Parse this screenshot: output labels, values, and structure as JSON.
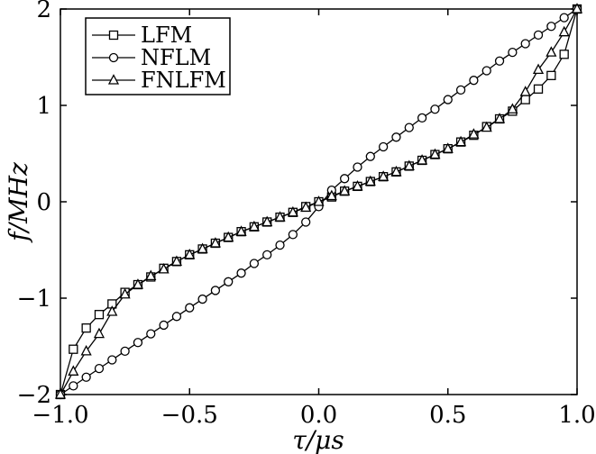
{
  "chart_data": {
    "type": "line",
    "xlabel": "τ/μs",
    "ylabel": "f/MHz",
    "xlim": [
      -1.0,
      1.0
    ],
    "ylim": [
      -2,
      2
    ],
    "xticks": [
      -1.0,
      -0.5,
      0.0,
      0.5,
      1.0
    ],
    "xtick_labels": [
      "−1.0",
      "−0.5",
      "0.0",
      "0.5",
      "1.0"
    ],
    "yticks": [
      -2,
      -1,
      0,
      1,
      2
    ],
    "ytick_labels": [
      "−2",
      "−1",
      "0",
      "1",
      "2"
    ],
    "grid": false,
    "legend_position": "top-left",
    "series": [
      {
        "name": "LFM",
        "marker": "square",
        "x": [
          -1.0,
          -0.95,
          -0.9,
          -0.85,
          -0.8,
          -0.75,
          -0.7,
          -0.65,
          -0.6,
          -0.55,
          -0.5,
          -0.45,
          -0.4,
          -0.35,
          -0.3,
          -0.25,
          -0.2,
          -0.15,
          -0.1,
          -0.05,
          0.0,
          0.05,
          0.1,
          0.15,
          0.2,
          0.25,
          0.3,
          0.35,
          0.4,
          0.45,
          0.5,
          0.55,
          0.6,
          0.65,
          0.7,
          0.75,
          0.8,
          0.85,
          0.9,
          0.95,
          1.0
        ],
        "y": [
          -2.0,
          -1.53,
          -1.31,
          -1.17,
          -1.06,
          -0.94,
          -0.86,
          -0.78,
          -0.69,
          -0.62,
          -0.55,
          -0.49,
          -0.43,
          -0.37,
          -0.31,
          -0.26,
          -0.21,
          -0.16,
          -0.11,
          -0.05,
          0.0,
          0.05,
          0.11,
          0.16,
          0.21,
          0.26,
          0.31,
          0.37,
          0.43,
          0.49,
          0.55,
          0.62,
          0.69,
          0.78,
          0.86,
          0.94,
          1.06,
          1.17,
          1.31,
          1.53,
          2.0
        ]
      },
      {
        "name": "NFLM",
        "marker": "circle",
        "x": [
          -1.0,
          -0.95,
          -0.9,
          -0.85,
          -0.8,
          -0.75,
          -0.7,
          -0.65,
          -0.6,
          -0.55,
          -0.5,
          -0.45,
          -0.4,
          -0.35,
          -0.3,
          -0.25,
          -0.2,
          -0.15,
          -0.1,
          -0.05,
          0.0,
          0.05,
          0.1,
          0.15,
          0.2,
          0.25,
          0.3,
          0.35,
          0.4,
          0.45,
          0.5,
          0.55,
          0.6,
          0.65,
          0.7,
          0.75,
          0.8,
          0.85,
          0.9,
          0.95,
          1.0
        ],
        "y": [
          -2.0,
          -1.91,
          -1.82,
          -1.73,
          -1.64,
          -1.55,
          -1.46,
          -1.37,
          -1.28,
          -1.19,
          -1.1,
          -1.01,
          -0.92,
          -0.83,
          -0.74,
          -0.64,
          -0.55,
          -0.45,
          -0.34,
          -0.21,
          -0.05,
          0.12,
          0.24,
          0.36,
          0.47,
          0.57,
          0.67,
          0.77,
          0.87,
          0.96,
          1.06,
          1.16,
          1.26,
          1.36,
          1.46,
          1.55,
          1.64,
          1.73,
          1.82,
          1.91,
          2.0
        ]
      },
      {
        "name": "FNLFM",
        "marker": "triangle",
        "x": [
          -1.0,
          -0.95,
          -0.9,
          -0.85,
          -0.8,
          -0.75,
          -0.7,
          -0.65,
          -0.6,
          -0.55,
          -0.5,
          -0.45,
          -0.4,
          -0.35,
          -0.3,
          -0.25,
          -0.2,
          -0.15,
          -0.1,
          -0.05,
          0.0,
          0.05,
          0.1,
          0.15,
          0.2,
          0.25,
          0.3,
          0.35,
          0.4,
          0.45,
          0.5,
          0.55,
          0.6,
          0.65,
          0.7,
          0.75,
          0.8,
          0.85,
          0.9,
          0.95,
          1.0
        ],
        "y": [
          -2.0,
          -1.76,
          -1.55,
          -1.37,
          -1.14,
          -0.96,
          -0.86,
          -0.77,
          -0.7,
          -0.62,
          -0.55,
          -0.49,
          -0.43,
          -0.37,
          -0.31,
          -0.26,
          -0.21,
          -0.16,
          -0.11,
          -0.06,
          0.0,
          0.06,
          0.11,
          0.16,
          0.21,
          0.26,
          0.31,
          0.37,
          0.43,
          0.49,
          0.55,
          0.62,
          0.7,
          0.77,
          0.86,
          0.96,
          1.14,
          1.37,
          1.55,
          1.76,
          2.0
        ]
      }
    ]
  }
}
